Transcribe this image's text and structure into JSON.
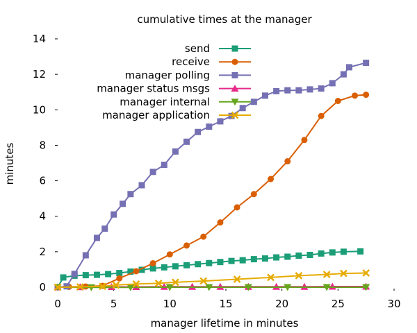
{
  "chart_data": {
    "type": "line",
    "title": "cumulative times at the manager",
    "xlabel": "manager lifetime in minutes",
    "ylabel": "minutes",
    "xlim": [
      0,
      30
    ],
    "ylim": [
      0,
      14
    ],
    "xticks": [
      "0",
      "5",
      "10",
      "15",
      "20",
      "25",
      "30"
    ],
    "yticks": [
      "0",
      "2",
      "4",
      "6",
      "8",
      "10",
      "12",
      "14"
    ],
    "grid": false,
    "legend_position": "top-right",
    "series": [
      {
        "name": "send",
        "color": "#1b9e77",
        "marker": "square",
        "x": [
          0,
          0.5,
          1.5,
          2.5,
          3.5,
          4.5,
          5.5,
          6.5,
          7.5,
          8.5,
          9.5,
          10.5,
          11.5,
          12.5,
          13.5,
          14.5,
          15.5,
          16.5,
          17.5,
          18.5,
          19.5,
          20.5,
          21.5,
          22.5,
          23.5,
          24.5,
          25.5,
          27.0
        ],
        "y": [
          0,
          0.55,
          0.65,
          0.68,
          0.7,
          0.74,
          0.8,
          0.88,
          0.98,
          1.06,
          1.12,
          1.18,
          1.24,
          1.3,
          1.36,
          1.42,
          1.48,
          1.52,
          1.58,
          1.62,
          1.68,
          1.72,
          1.78,
          1.82,
          1.9,
          1.96,
          2.0,
          2.02
        ]
      },
      {
        "name": "receive",
        "color": "#d95f02",
        "marker": "circle",
        "x": [
          0,
          1,
          2.5,
          4,
          5.5,
          7,
          8.5,
          10,
          11.5,
          13,
          14.5,
          16,
          17.5,
          19,
          20.5,
          22,
          23.5,
          25,
          26.5,
          27.5
        ],
        "y": [
          0,
          0.02,
          0.04,
          0.08,
          0.5,
          0.9,
          1.35,
          1.85,
          2.35,
          2.85,
          3.65,
          4.5,
          5.25,
          6.1,
          7.1,
          8.3,
          9.65,
          10.5,
          10.8,
          10.85
        ]
      },
      {
        "name": "manager polling",
        "color": "#7570b3",
        "marker": "square",
        "x": [
          0,
          0.8,
          1.5,
          2.5,
          3.5,
          4.2,
          5.0,
          5.8,
          6.5,
          7.5,
          8.5,
          9.5,
          10.5,
          11.5,
          12.5,
          13.5,
          14.5,
          15.5,
          16.5,
          17.5,
          18.5,
          19.5,
          20.5,
          21.5,
          22.5,
          23.5,
          24.5,
          25.5,
          26.0,
          27.5
        ],
        "y": [
          0,
          0.05,
          0.75,
          1.8,
          2.78,
          3.3,
          4.1,
          4.7,
          5.25,
          5.75,
          6.5,
          6.9,
          7.65,
          8.2,
          8.75,
          9.05,
          9.35,
          9.65,
          10.1,
          10.45,
          10.8,
          11.05,
          11.1,
          11.1,
          11.15,
          11.2,
          11.5,
          12.0,
          12.4,
          12.65
        ]
      },
      {
        "name": "manager status msgs",
        "color": "#e7298a",
        "marker": "triangle",
        "x": [
          0,
          2,
          4.8,
          7,
          9.5,
          12,
          14.5,
          17,
          19.5,
          22,
          24.5,
          27.5
        ],
        "y": [
          0,
          0.01,
          0.02,
          0.02,
          0.03,
          0.03,
          0.03,
          0.03,
          0.03,
          0.03,
          0.04,
          0.04
        ]
      },
      {
        "name": "manager internal",
        "color": "#66a61e",
        "marker": "triangle-down",
        "x": [
          0,
          3,
          6.5,
          10,
          13.5,
          17,
          20.5,
          24,
          27.5
        ],
        "y": [
          0,
          -0.01,
          -0.01,
          0,
          0,
          0,
          0,
          0,
          0
        ]
      },
      {
        "name": "manager application",
        "color": "#e6ab02",
        "marker": "x",
        "x": [
          0,
          2,
          4,
          5.2,
          7,
          9,
          10.5,
          13,
          16,
          19,
          21.5,
          24,
          25.5,
          27.5
        ],
        "y": [
          0,
          0.02,
          0.05,
          0.12,
          0.18,
          0.22,
          0.28,
          0.35,
          0.45,
          0.55,
          0.65,
          0.72,
          0.78,
          0.8
        ]
      }
    ]
  }
}
